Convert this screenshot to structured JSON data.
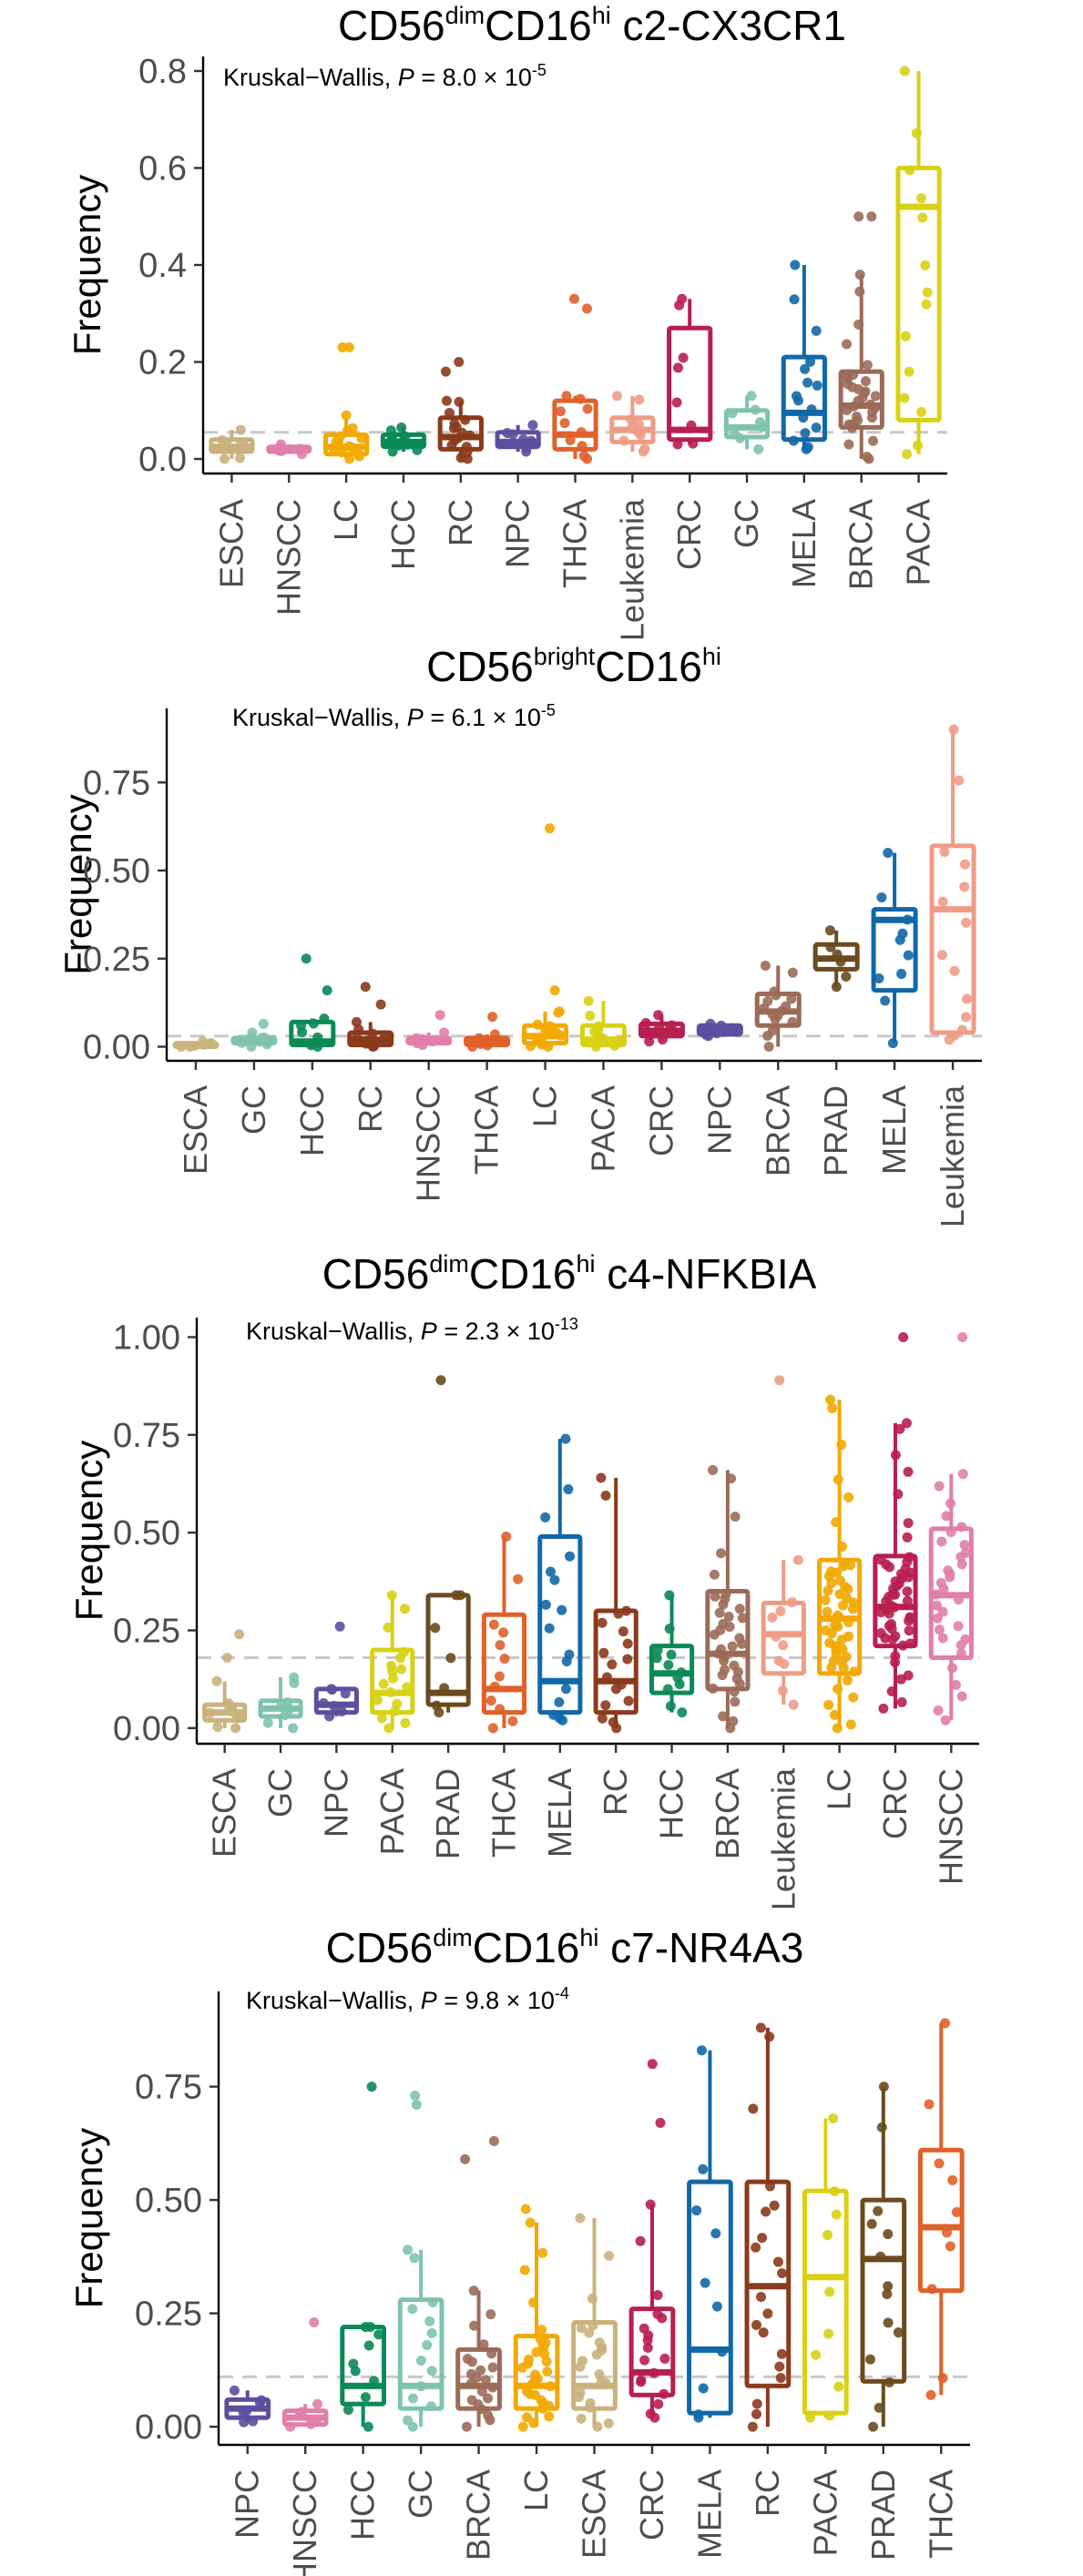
{
  "colors": {
    "ESCA": "#c9b27c",
    "HNSCC": "#e07fa8",
    "LC": "#f2a800",
    "HCC": "#0a8a57",
    "RC": "#8b3a1c",
    "NPC": "#5b4fa0",
    "THCA": "#e0612a",
    "Leukemia": "#ee9c86",
    "CRC": "#b81e4f",
    "GC": "#7fc4aa",
    "MELA": "#1168a8",
    "BRCA": "#9b6b58",
    "PACA": "#d8d114",
    "PRAD": "#6b4a1e"
  },
  "chart_data": [
    {
      "type": "boxplot",
      "title": "CD56",
      "title_sup1": "dim",
      "title_mid": "CD16",
      "title_sup2": "hi",
      "title_suffix": " c2-CX3CR1",
      "stat": "Kruskal−Wallis, ",
      "stat_p": "P",
      "stat_eq": " = 8.0 × 10",
      "stat_exp": "-5",
      "ylabel": "Frequency",
      "ylim": [
        -0.03,
        0.83
      ],
      "yticks": [
        0,
        0.2,
        0.4,
        0.6,
        0.8
      ],
      "yticklabels": [
        "0.0",
        "0.2",
        "0.4",
        "0.6",
        "0.8"
      ],
      "reference_line": 0.055,
      "categories": [
        "ESCA",
        "HNSCC",
        "LC",
        "HCC",
        "RC",
        "NPC",
        "THCA",
        "Leukemia",
        "CRC",
        "GC",
        "MELA",
        "BRCA",
        "PACA"
      ],
      "boxes": [
        {
          "q1": 0.015,
          "med": 0.025,
          "q3": 0.04,
          "lo": 0.0,
          "hi": 0.06,
          "n": 6,
          "outliers": []
        },
        {
          "q1": 0.015,
          "med": 0.02,
          "q3": 0.025,
          "lo": 0.01,
          "hi": 0.03,
          "n": 4,
          "outliers": []
        },
        {
          "q1": 0.01,
          "med": 0.025,
          "q3": 0.05,
          "lo": 0.0,
          "hi": 0.09,
          "n": 12,
          "outliers": [
            0.23,
            0.23
          ]
        },
        {
          "q1": 0.025,
          "med": 0.035,
          "q3": 0.05,
          "lo": 0.015,
          "hi": 0.065,
          "n": 8,
          "outliers": []
        },
        {
          "q1": 0.02,
          "med": 0.045,
          "q3": 0.085,
          "lo": 0.0,
          "hi": 0.12,
          "n": 14,
          "outliers": [
            0.18,
            0.2
          ]
        },
        {
          "q1": 0.025,
          "med": 0.035,
          "q3": 0.055,
          "lo": 0.015,
          "hi": 0.07,
          "n": 6,
          "outliers": []
        },
        {
          "q1": 0.02,
          "med": 0.05,
          "q3": 0.12,
          "lo": 0.0,
          "hi": 0.13,
          "n": 8,
          "outliers": [
            0.31,
            0.33
          ]
        },
        {
          "q1": 0.035,
          "med": 0.06,
          "q3": 0.085,
          "lo": 0.015,
          "hi": 0.13,
          "n": 8,
          "outliers": []
        },
        {
          "q1": 0.04,
          "med": 0.06,
          "q3": 0.27,
          "lo": 0.03,
          "hi": 0.33,
          "n": 6,
          "outliers": []
        },
        {
          "q1": 0.045,
          "med": 0.065,
          "q3": 0.1,
          "lo": 0.02,
          "hi": 0.13,
          "n": 6,
          "outliers": []
        },
        {
          "q1": 0.04,
          "med": 0.095,
          "q3": 0.21,
          "lo": 0.02,
          "hi": 0.4,
          "n": 14,
          "outliers": []
        },
        {
          "q1": 0.065,
          "med": 0.11,
          "q3": 0.18,
          "lo": 0.0,
          "hi": 0.38,
          "n": 30,
          "outliers": [
            0.5,
            0.5
          ]
        },
        {
          "q1": 0.08,
          "med": 0.52,
          "q3": 0.6,
          "lo": 0.01,
          "hi": 0.8,
          "n": 12,
          "outliers": []
        }
      ]
    },
    {
      "type": "boxplot",
      "title": "CD56",
      "title_sup1": "bright",
      "title_mid": "CD16",
      "title_sup2": "hi",
      "title_suffix": "",
      "stat": "Kruskal−Wallis, ",
      "stat_p": "P",
      "stat_eq": " = 6.1 × 10",
      "stat_exp": "-5",
      "ylabel": "Frequency",
      "ylim": [
        -0.04,
        0.96
      ],
      "yticks": [
        0,
        0.25,
        0.5,
        0.75
      ],
      "yticklabels": [
        "0.00",
        "0.25",
        "0.50",
        "0.75"
      ],
      "reference_line": 0.03,
      "categories": [
        "ESCA",
        "GC",
        "HCC",
        "RC",
        "HNSCC",
        "THCA",
        "LC",
        "PACA",
        "CRC",
        "NPC",
        "BRCA",
        "PRAD",
        "MELA",
        "Leukemia"
      ],
      "boxes": [
        {
          "q1": 0.0,
          "med": 0.005,
          "q3": 0.01,
          "lo": 0.0,
          "hi": 0.015,
          "n": 5,
          "outliers": []
        },
        {
          "q1": 0.01,
          "med": 0.015,
          "q3": 0.025,
          "lo": 0.0,
          "hi": 0.04,
          "n": 8,
          "outliers": [
            0.065
          ]
        },
        {
          "q1": 0.005,
          "med": 0.015,
          "q3": 0.07,
          "lo": 0.0,
          "hi": 0.08,
          "n": 5,
          "outliers": [
            0.16,
            0.25
          ]
        },
        {
          "q1": 0.005,
          "med": 0.02,
          "q3": 0.04,
          "lo": 0.0,
          "hi": 0.07,
          "n": 8,
          "outliers": [
            0.12,
            0.17
          ]
        },
        {
          "q1": 0.01,
          "med": 0.015,
          "q3": 0.025,
          "lo": 0.005,
          "hi": 0.04,
          "n": 5,
          "outliers": [
            0.09
          ]
        },
        {
          "q1": 0.005,
          "med": 0.015,
          "q3": 0.025,
          "lo": 0.0,
          "hi": 0.035,
          "n": 5,
          "outliers": [
            0.085
          ]
        },
        {
          "q1": 0.01,
          "med": 0.03,
          "q3": 0.06,
          "lo": 0.0,
          "hi": 0.1,
          "n": 16,
          "outliers": [
            0.16,
            0.62
          ]
        },
        {
          "q1": 0.005,
          "med": 0.02,
          "q3": 0.06,
          "lo": 0.0,
          "hi": 0.13,
          "n": 9,
          "outliers": []
        },
        {
          "q1": 0.03,
          "med": 0.045,
          "q3": 0.065,
          "lo": 0.015,
          "hi": 0.09,
          "n": 8,
          "outliers": []
        },
        {
          "q1": 0.035,
          "med": 0.045,
          "q3": 0.06,
          "lo": 0.03,
          "hi": 0.065,
          "n": 5,
          "outliers": []
        },
        {
          "q1": 0.06,
          "med": 0.1,
          "q3": 0.15,
          "lo": 0.0,
          "hi": 0.23,
          "n": 14,
          "outliers": []
        },
        {
          "q1": 0.22,
          "med": 0.25,
          "q3": 0.29,
          "lo": 0.17,
          "hi": 0.33,
          "n": 4,
          "outliers": []
        },
        {
          "q1": 0.16,
          "med": 0.36,
          "q3": 0.39,
          "lo": 0.01,
          "hi": 0.55,
          "n": 8,
          "outliers": []
        },
        {
          "q1": 0.04,
          "med": 0.39,
          "q3": 0.57,
          "lo": 0.02,
          "hi": 0.9,
          "n": 12,
          "outliers": []
        }
      ]
    },
    {
      "type": "boxplot",
      "title": "CD56",
      "title_sup1": "dim",
      "title_mid": "CD16",
      "title_sup2": "hi",
      "title_suffix": " c4-NFKBIA",
      "stat": "Kruskal−Wallis, ",
      "stat_p": "P",
      "stat_eq": " = 2.3 × 10",
      "stat_exp": "-13",
      "ylabel": "Frequency",
      "ylim": [
        -0.04,
        1.05
      ],
      "yticks": [
        0,
        0.25,
        0.5,
        0.75,
        1.0
      ],
      "yticklabels": [
        "0.00",
        "0.25",
        "0.50",
        "0.75",
        "1.00"
      ],
      "reference_line": 0.18,
      "categories": [
        "ESCA",
        "GC",
        "NPC",
        "PACA",
        "PRAD",
        "THCA",
        "MELA",
        "RC",
        "HCC",
        "BRCA",
        "Leukemia",
        "LC",
        "CRC",
        "HNSCC"
      ],
      "boxes": [
        {
          "q1": 0.02,
          "med": 0.04,
          "q3": 0.06,
          "lo": 0.0,
          "hi": 0.12,
          "n": 8,
          "outliers": [
            0.18,
            0.24
          ]
        },
        {
          "q1": 0.03,
          "med": 0.05,
          "q3": 0.07,
          "lo": 0.0,
          "hi": 0.13,
          "n": 6,
          "outliers": []
        },
        {
          "q1": 0.04,
          "med": 0.06,
          "q3": 0.1,
          "lo": 0.03,
          "hi": 0.1,
          "n": 5,
          "outliers": [
            0.26
          ]
        },
        {
          "q1": 0.04,
          "med": 0.09,
          "q3": 0.2,
          "lo": 0.0,
          "hi": 0.34,
          "n": 16,
          "outliers": []
        },
        {
          "q1": 0.06,
          "med": 0.09,
          "q3": 0.34,
          "lo": 0.04,
          "hi": 0.34,
          "n": 5,
          "outliers": [
            0.89
          ]
        },
        {
          "q1": 0.04,
          "med": 0.1,
          "q3": 0.29,
          "lo": 0.0,
          "hi": 0.49,
          "n": 10,
          "outliers": []
        },
        {
          "q1": 0.04,
          "med": 0.12,
          "q3": 0.49,
          "lo": 0.02,
          "hi": 0.74,
          "n": 14,
          "outliers": []
        },
        {
          "q1": 0.04,
          "med": 0.12,
          "q3": 0.3,
          "lo": 0.0,
          "hi": 0.64,
          "n": 16,
          "outliers": []
        },
        {
          "q1": 0.09,
          "med": 0.14,
          "q3": 0.21,
          "lo": 0.04,
          "hi": 0.34,
          "n": 10,
          "outliers": []
        },
        {
          "q1": 0.1,
          "med": 0.19,
          "q3": 0.35,
          "lo": 0.0,
          "hi": 0.66,
          "n": 34,
          "outliers": []
        },
        {
          "q1": 0.14,
          "med": 0.24,
          "q3": 0.32,
          "lo": 0.06,
          "hi": 0.43,
          "n": 8,
          "outliers": [
            0.89
          ]
        },
        {
          "q1": 0.14,
          "med": 0.28,
          "q3": 0.43,
          "lo": 0.0,
          "hi": 0.84,
          "n": 50,
          "outliers": []
        },
        {
          "q1": 0.21,
          "med": 0.31,
          "q3": 0.44,
          "lo": 0.05,
          "hi": 0.78,
          "n": 50,
          "outliers": [
            1.0
          ]
        },
        {
          "q1": 0.18,
          "med": 0.34,
          "q3": 0.51,
          "lo": 0.02,
          "hi": 0.65,
          "n": 30,
          "outliers": [
            1.0
          ]
        }
      ]
    },
    {
      "type": "boxplot",
      "title": "CD56",
      "title_sup1": "dim",
      "title_mid": "CD16",
      "title_sup2": "hi",
      "title_suffix": " c7-NR4A3",
      "stat": "Kruskal−Wallis, ",
      "stat_p": "P",
      "stat_eq": " = 9.8 × 10",
      "stat_exp": "-4",
      "ylabel": "Frequency",
      "ylim": [
        -0.04,
        0.96
      ],
      "yticks": [
        0,
        0.25,
        0.5,
        0.75
      ],
      "yticklabels": [
        "0.00",
        "0.25",
        "0.50",
        "0.75"
      ],
      "reference_line": 0.11,
      "categories": [
        "NPC",
        "HNSCC",
        "HCC",
        "GC",
        "BRCA",
        "LC",
        "ESCA",
        "CRC",
        "MELA",
        "RC",
        "PACA",
        "PRAD",
        "THCA"
      ],
      "boxes": [
        {
          "q1": 0.02,
          "med": 0.04,
          "q3": 0.06,
          "lo": 0.01,
          "hi": 0.08,
          "n": 5,
          "outliers": []
        },
        {
          "q1": 0.005,
          "med": 0.02,
          "q3": 0.035,
          "lo": 0.0,
          "hi": 0.05,
          "n": 4,
          "outliers": [
            0.23
          ]
        },
        {
          "q1": 0.05,
          "med": 0.09,
          "q3": 0.22,
          "lo": 0.0,
          "hi": 0.22,
          "n": 8,
          "outliers": [
            0.75
          ]
        },
        {
          "q1": 0.04,
          "med": 0.09,
          "q3": 0.28,
          "lo": 0.0,
          "hi": 0.39,
          "n": 12,
          "outliers": [
            0.71,
            0.73
          ]
        },
        {
          "q1": 0.04,
          "med": 0.09,
          "q3": 0.17,
          "lo": 0.0,
          "hi": 0.3,
          "n": 20,
          "outliers": [
            0.59,
            0.63
          ]
        },
        {
          "q1": 0.04,
          "med": 0.09,
          "q3": 0.2,
          "lo": 0.0,
          "hi": 0.45,
          "n": 30,
          "outliers": [
            0.48
          ]
        },
        {
          "q1": 0.04,
          "med": 0.09,
          "q3": 0.23,
          "lo": 0.0,
          "hi": 0.46,
          "n": 20,
          "outliers": []
        },
        {
          "q1": 0.07,
          "med": 0.12,
          "q3": 0.26,
          "lo": 0.02,
          "hi": 0.49,
          "n": 16,
          "outliers": [
            0.67,
            0.8
          ]
        },
        {
          "q1": 0.03,
          "med": 0.17,
          "q3": 0.54,
          "lo": 0.02,
          "hi": 0.83,
          "n": 8,
          "outliers": []
        },
        {
          "q1": 0.09,
          "med": 0.31,
          "q3": 0.54,
          "lo": 0.0,
          "hi": 0.88,
          "n": 18,
          "outliers": []
        },
        {
          "q1": 0.03,
          "med": 0.33,
          "q3": 0.52,
          "lo": 0.02,
          "hi": 0.68,
          "n": 8,
          "outliers": []
        },
        {
          "q1": 0.1,
          "med": 0.37,
          "q3": 0.5,
          "lo": 0.0,
          "hi": 0.75,
          "n": 12,
          "outliers": []
        },
        {
          "q1": 0.3,
          "med": 0.44,
          "q3": 0.61,
          "lo": 0.07,
          "hi": 0.89,
          "n": 8,
          "outliers": []
        }
      ]
    }
  ]
}
